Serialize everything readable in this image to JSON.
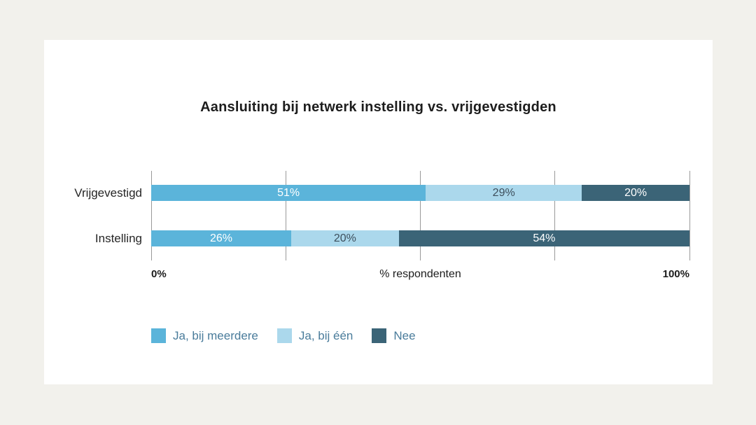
{
  "page": {
    "background_color": "#f2f1ec",
    "card_background_color": "#ffffff"
  },
  "chart": {
    "x_axis": {
      "min_label": "0%",
      "label": "% respondenten",
      "max_label": "100%"
    }
  },
  "chart_data": {
    "type": "bar",
    "orientation": "horizontal",
    "stacked": true,
    "title": "Aansluiting bij netwerk instelling vs. vrijgevestigden",
    "xlabel": "% respondenten",
    "categories": [
      "Vrijgevestigd",
      "Instelling"
    ],
    "series": [
      {
        "name": "Ja, bij meerdere",
        "values": [
          51,
          26
        ],
        "color": "#5bb4da",
        "label_color": "#ffffff"
      },
      {
        "name": "Ja, bij één",
        "values": [
          29,
          20
        ],
        "color": "#abd8ec",
        "label_color": "#3d4f5c"
      },
      {
        "name": "Nee",
        "values": [
          20,
          54
        ],
        "color": "#3b6477",
        "label_color": "#ffffff"
      }
    ],
    "xlim": [
      0,
      100
    ],
    "gridlines": [
      0,
      25,
      50,
      75,
      100
    ],
    "gridline_color": "#999999",
    "value_suffix": "%",
    "legend_position": "bottom",
    "legend_text_color": "#4a7c9b",
    "grid": true
  }
}
